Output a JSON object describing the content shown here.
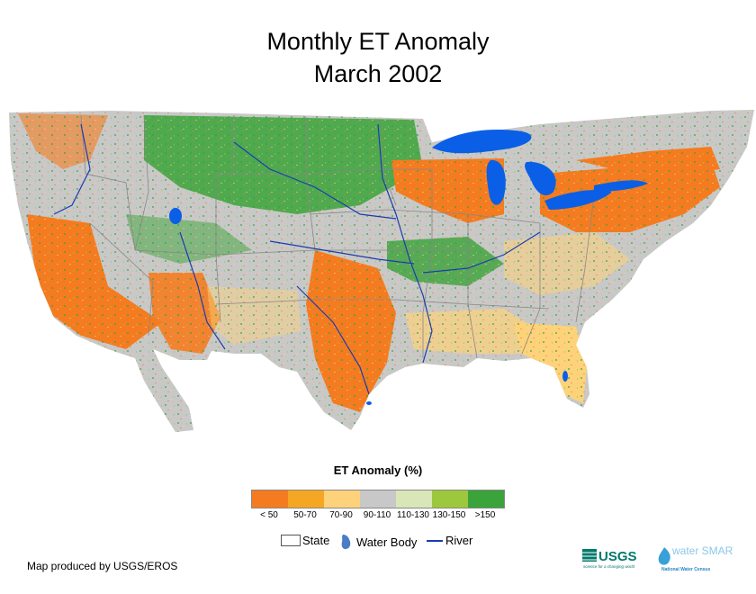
{
  "title": {
    "line1": "Monthly ET Anomaly",
    "line2": "March 2002"
  },
  "legend": {
    "title": "ET Anomaly (%)",
    "classes": [
      {
        "label": "< 50",
        "color": "#f57b20"
      },
      {
        "label": "50-70",
        "color": "#f5a623"
      },
      {
        "label": "70-90",
        "color": "#fdd27a"
      },
      {
        "label": "90-110",
        "color": "#c8c8c8"
      },
      {
        "label": "110-130",
        "color": "#d9e6b8"
      },
      {
        "label": "130-150",
        "color": "#9dc73c"
      },
      {
        "label": ">150",
        "color": "#3aa33a"
      }
    ],
    "keys": {
      "state": "State",
      "water_body": "Water Body",
      "river": "River"
    }
  },
  "credit": "Map produced by USGS/EROS",
  "logos": {
    "usgs": "USGS",
    "watersmart": "water SMART",
    "usgs_tagline": "science for a changing world",
    "watersmart_tagline": "National Water Census"
  },
  "colors": {
    "water": "#0a5fe6",
    "river": "#1a3cb0",
    "state_line": "#888888"
  }
}
